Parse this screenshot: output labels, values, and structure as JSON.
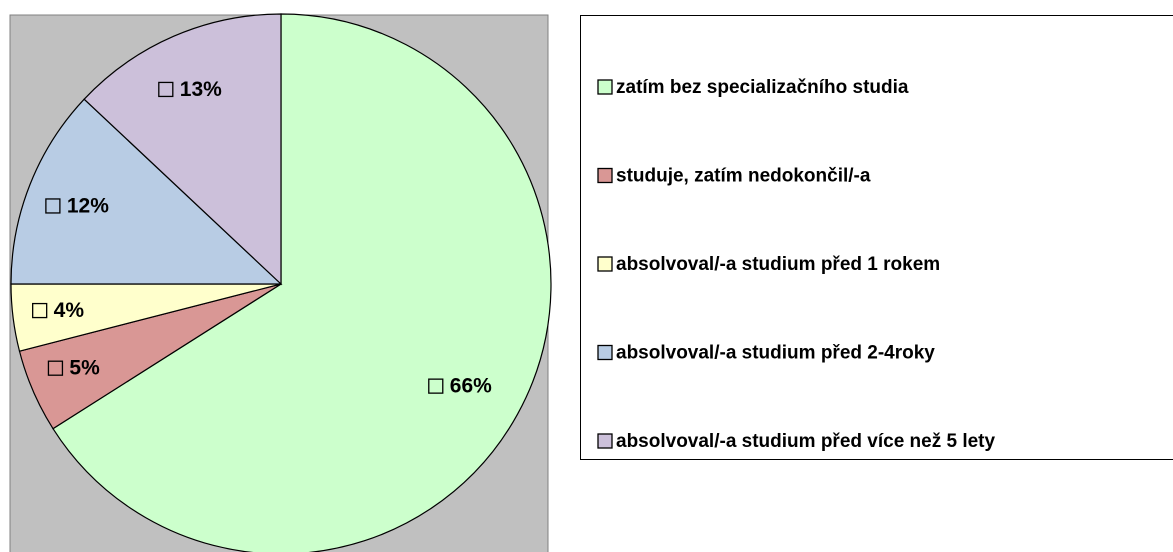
{
  "chart_data": {
    "type": "pie",
    "categories": [
      "zatím bez specializačního studia",
      "studuje, zatím nedokončil/-a",
      "absolvoval/-a studium před 1 rokem",
      "absolvoval/-a studium před 2-4roky",
      "absolvoval/-a studium před více než 5 lety"
    ],
    "values": [
      66,
      5,
      4,
      12,
      13
    ],
    "value_labels": [
      "66%",
      "5%",
      "4%",
      "12%",
      "13%"
    ],
    "colors": [
      "#ccffcc",
      "#d99795",
      "#ffffcc",
      "#b8cce4",
      "#ccc0da"
    ],
    "legend": "right"
  }
}
